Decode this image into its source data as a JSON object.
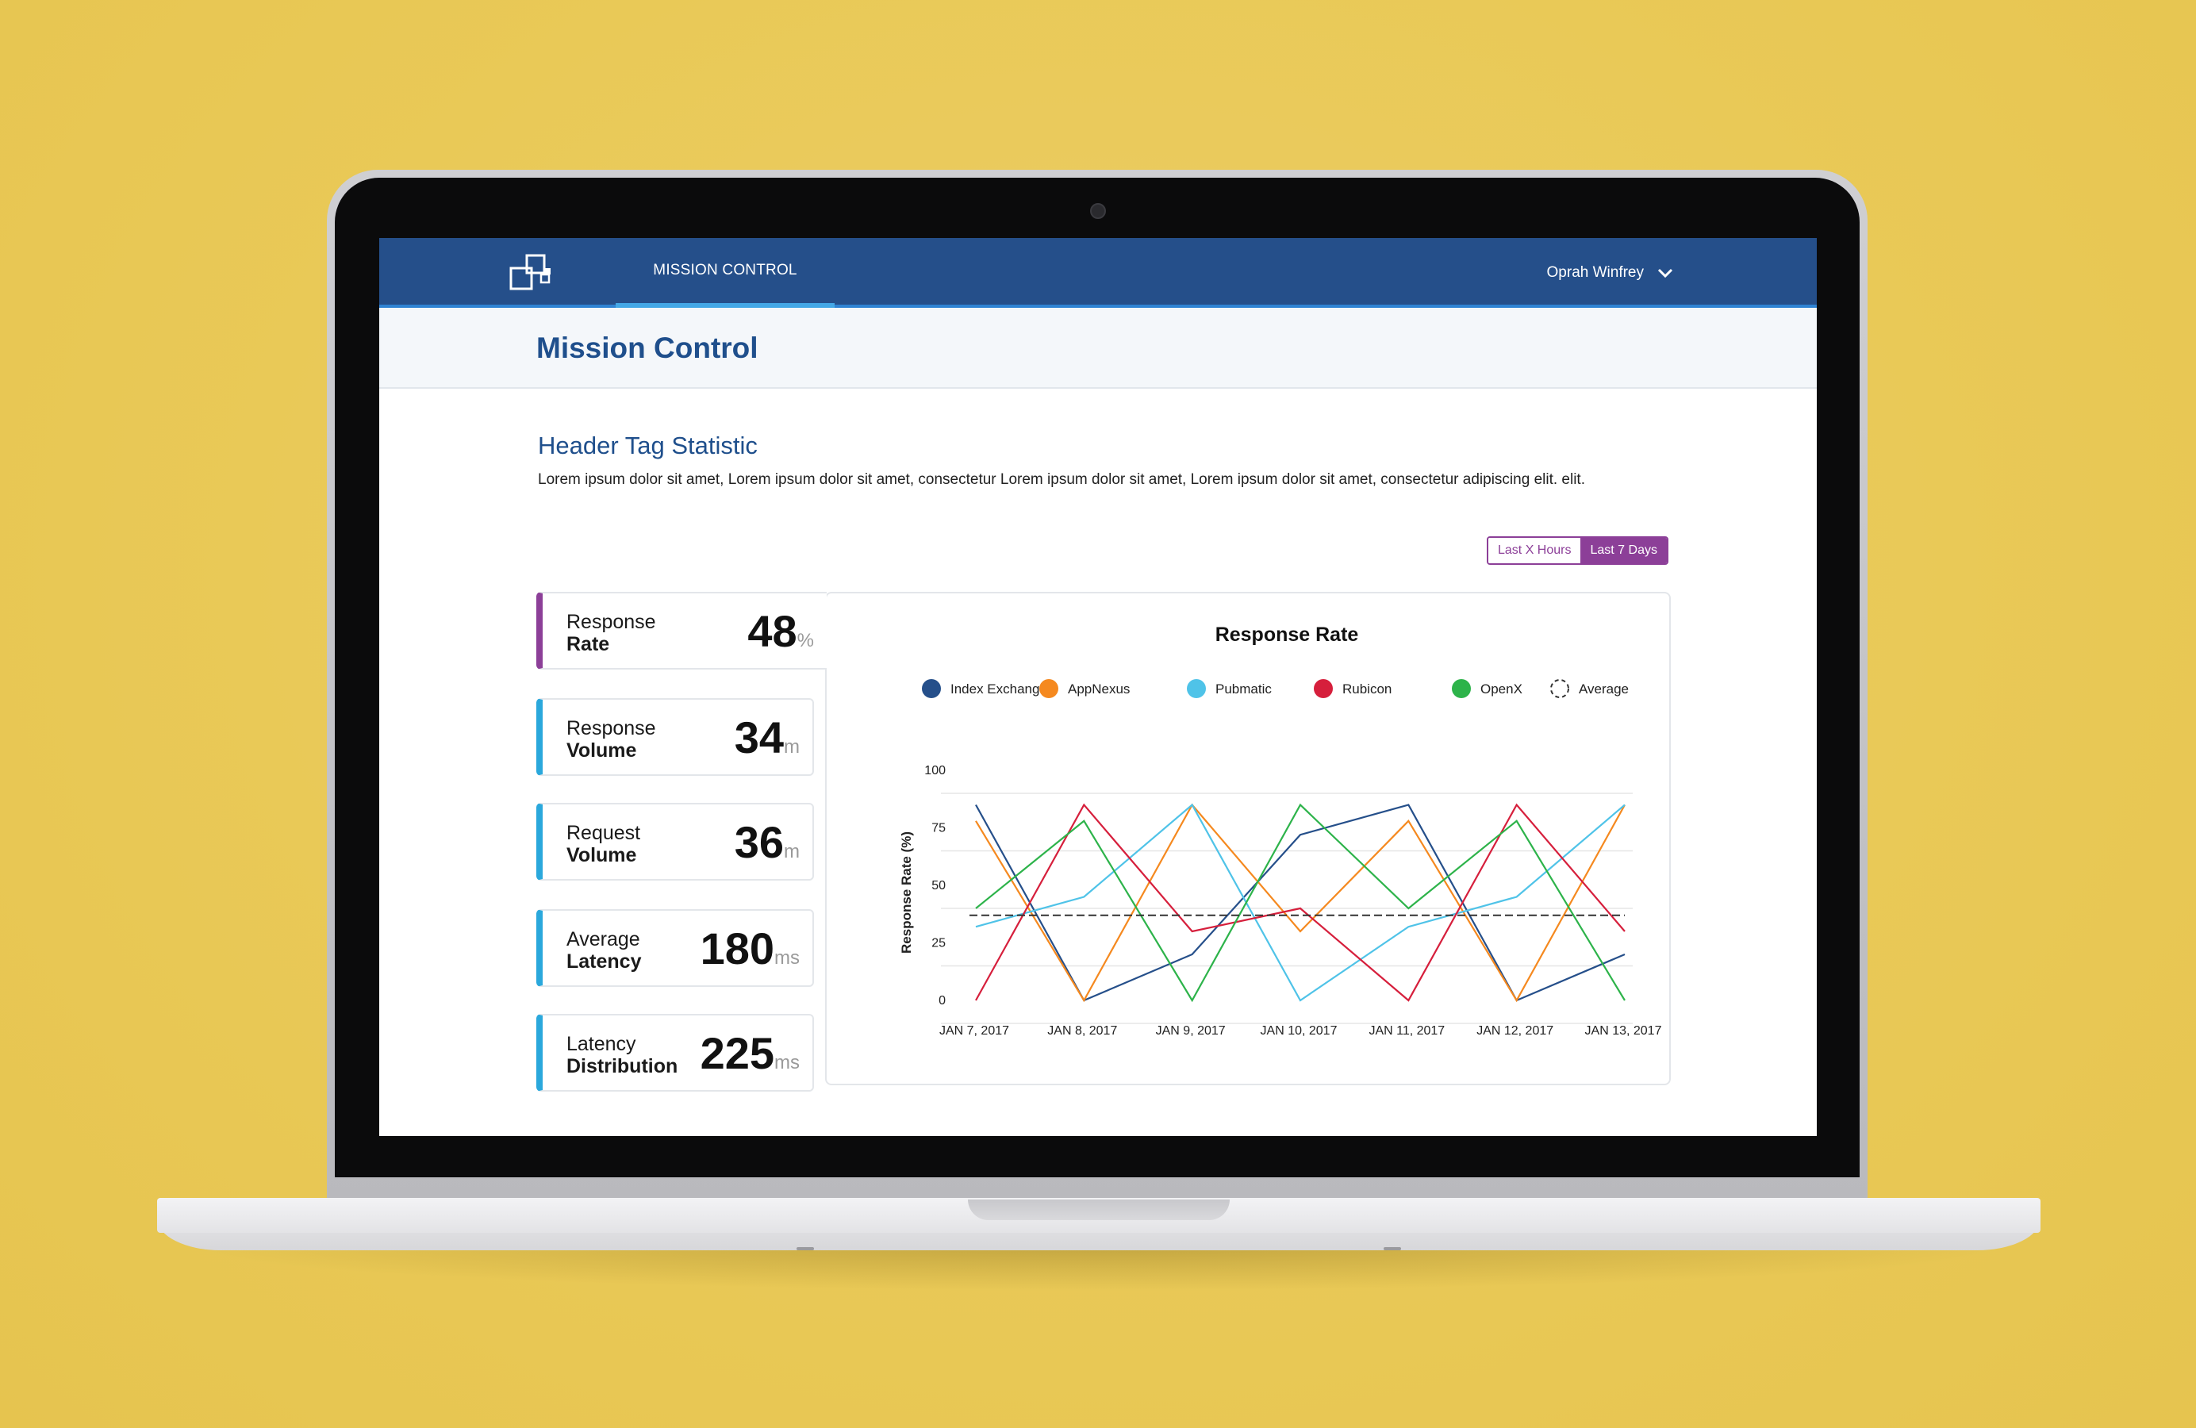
{
  "nav": {
    "tab_label": "MISSION CONTROL",
    "user_name": "Oprah Winfrey"
  },
  "page": {
    "title": "Mission Control",
    "section_title": "Header Tag Statistic",
    "section_description": "Lorem ipsum dolor sit amet, Lorem ipsum dolor sit amet, consectetur Lorem ipsum dolor sit amet, Lorem ipsum dolor sit amet, consectetur adipiscing elit. elit."
  },
  "range_toggle": {
    "options": [
      "Last X Hours",
      "Last 7 Days"
    ],
    "selected": "Last 7 Days"
  },
  "stats": [
    {
      "label_top": "Response",
      "label_bottom": "Rate",
      "value": "48",
      "unit": "%",
      "active": true
    },
    {
      "label_top": "Response",
      "label_bottom": "Volume",
      "value": "34",
      "unit": "m",
      "active": false
    },
    {
      "label_top": "Request",
      "label_bottom": "Volume",
      "value": "36",
      "unit": "m",
      "active": false
    },
    {
      "label_top": "Average",
      "label_bottom": "Latency",
      "value": "180",
      "unit": "ms",
      "active": false
    },
    {
      "label_top": "Latency",
      "label_bottom": "Distribution",
      "value": "225",
      "unit": "ms",
      "active": false
    }
  ],
  "colors": {
    "nav": "#254f8a",
    "accent_purple": "#8c3f98",
    "accent_blue": "#2aa8dc",
    "title_blue": "#1f4f8c"
  },
  "chart_data": {
    "type": "line",
    "title": "Response Rate",
    "ylabel": "Response Rate (%)",
    "xlabel": "",
    "x": [
      "JAN 7, 2017",
      "JAN 8, 2017",
      "JAN 9, 2017",
      "JAN 10, 2017",
      "JAN 11, 2017",
      "JAN 12, 2017",
      "JAN 13, 2017"
    ],
    "yticks": [
      0,
      25,
      50,
      75,
      100
    ],
    "ylim": [
      0,
      100
    ],
    "grid": true,
    "legend_position": "top",
    "series": [
      {
        "name": "Index Exchange",
        "color": "#254f8a",
        "values": [
          95,
          10,
          30,
          82,
          95,
          10,
          30
        ]
      },
      {
        "name": "AppNexus",
        "color": "#f5891f",
        "values": [
          88,
          10,
          95,
          40,
          88,
          10,
          95
        ]
      },
      {
        "name": "Pubmatic",
        "color": "#4fc3e8",
        "values": [
          42,
          55,
          95,
          10,
          42,
          55,
          95
        ]
      },
      {
        "name": "Rubicon",
        "color": "#d61f3c",
        "values": [
          10,
          95,
          40,
          50,
          10,
          95,
          40
        ]
      },
      {
        "name": "OpenX",
        "color": "#2db34a",
        "values": [
          50,
          88,
          10,
          95,
          50,
          88,
          10
        ]
      },
      {
        "name": "Average",
        "color": "#333333",
        "dashed": true,
        "values": [
          47,
          47,
          47,
          47,
          47,
          47,
          47
        ]
      }
    ]
  }
}
